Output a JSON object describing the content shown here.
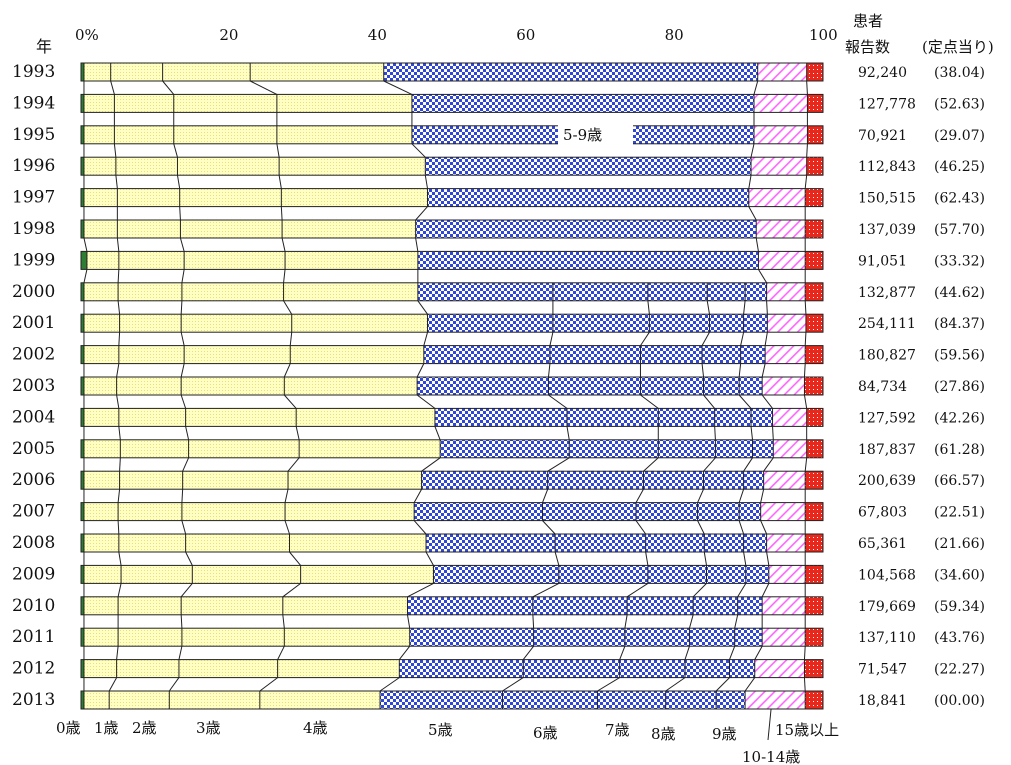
{
  "header": {
    "year_label": "年",
    "patients_label_line1": "患者",
    "patients_label_line2": "報告数",
    "per_sentinel_label": "(定点当り)"
  },
  "colors": {
    "age0": "#2e7d32",
    "age1to4": "#ffffc0",
    "age5to9": "#2f46d6",
    "age10to14": "#ff66ff",
    "age15plus": "#e8281c"
  },
  "chart_data": {
    "type": "bar",
    "stacked": true,
    "orientation": "horizontal",
    "x_ticks": [
      "0%",
      "20",
      "40",
      "60",
      "80",
      "100"
    ],
    "xlim": [
      0,
      100
    ],
    "years": [
      "1993",
      "1994",
      "1995",
      "1996",
      "1997",
      "1998",
      "1999",
      "2000",
      "2001",
      "2002",
      "2003",
      "2004",
      "2005",
      "2006",
      "2007",
      "2008",
      "2009",
      "2010",
      "2011",
      "2012",
      "2013"
    ],
    "patients": [
      "92,240",
      "127,778",
      "70,921",
      "112,843",
      "150,515",
      "137,039",
      "91,051",
      "132,877",
      "254,111",
      "180,827",
      "84,734",
      "127,592",
      "187,837",
      "200,639",
      "67,803",
      "65,361",
      "104,568",
      "179,669",
      "137,110",
      "71,547",
      "18,841"
    ],
    "per_sentinel": [
      "(38.04)",
      "(52.63)",
      "(29.07)",
      "(46.25)",
      "(62.43)",
      "(57.70)",
      "(33.32)",
      "(44.62)",
      "(84.37)",
      "(59.56)",
      "(27.86)",
      "(42.26)",
      "(61.28)",
      "(66.57)",
      "(22.51)",
      "(21.66)",
      "(34.60)",
      "(59.34)",
      "(43.76)",
      "(22.27)",
      "(00.00)"
    ],
    "annotation": "5-9歳",
    "age_labels": [
      "0歳",
      "1歳",
      "2歳",
      "3歳",
      "4歳",
      "5歳",
      "6歳",
      "7歳",
      "8歳",
      "9歳",
      "10-14歳",
      "15歳以上"
    ],
    "cumulative_boundaries_percent": [
      {
        "age0": 0.4,
        "age1_4": [
          4.0,
          11.0,
          22.8,
          40.8
        ],
        "age5_9": [],
        "end5_9": 91.2,
        "end10_14": 97.8
      },
      {
        "age0": 0.4,
        "age1_4": [
          4.5,
          12.5,
          26.4,
          44.6
        ],
        "age5_9": [],
        "end5_9": 90.7,
        "end10_14": 97.9
      },
      {
        "age0": 0.4,
        "age1_4": [
          4.5,
          12.5,
          26.4,
          44.6
        ],
        "age5_9": [],
        "end5_9": 90.7,
        "end10_14": 97.9
      },
      {
        "age0": 0.4,
        "age1_4": [
          4.7,
          13.0,
          26.7,
          46.4
        ],
        "age5_9": [],
        "end5_9": 90.3,
        "end10_14": 97.8
      },
      {
        "age0": 0.4,
        "age1_4": [
          4.9,
          13.3,
          27.0,
          46.7
        ],
        "age5_9": [],
        "end5_9": 90.0,
        "end10_14": 97.6
      },
      {
        "age0": 0.4,
        "age1_4": [
          4.9,
          13.4,
          27.1,
          45.1
        ],
        "age5_9": [],
        "end5_9": 91.0,
        "end10_14": 97.6
      },
      {
        "age0": 0.8,
        "age1_4": [
          5.1,
          13.9,
          27.5,
          45.4
        ],
        "age5_9": [],
        "end5_9": 91.3,
        "end10_14": 97.6
      },
      {
        "age0": 0.4,
        "age1_4": [
          5.0,
          13.6,
          27.3,
          45.4
        ],
        "age5_9": [
          63.6,
          76.4,
          84.4,
          89.5
        ],
        "end5_9": 92.4,
        "end10_14": 97.6
      },
      {
        "age0": 0.4,
        "age1_4": [
          5.2,
          13.5,
          28.4,
          46.7
        ],
        "age5_9": [
          63.6,
          76.6,
          84.7,
          89.3
        ],
        "end5_9": 92.5,
        "end10_14": 97.7
      },
      {
        "age0": 0.4,
        "age1_4": [
          5.1,
          13.9,
          28.2,
          46.2
        ],
        "age5_9": [
          63.2,
          75.4,
          83.7,
          88.9
        ],
        "end5_9": 92.2,
        "end10_14": 97.6
      },
      {
        "age0": 0.4,
        "age1_4": [
          4.8,
          13.5,
          27.4,
          45.3
        ],
        "age5_9": [
          63.0,
          75.4,
          83.9,
          88.7
        ],
        "end5_9": 91.8,
        "end10_14": 97.5
      },
      {
        "age0": 0.4,
        "age1_4": [
          5.1,
          14.1,
          29.0,
          47.7
        ],
        "age5_9": [
          65.5,
          77.8,
          85.4,
          90.3
        ],
        "end5_9": 93.2,
        "end10_14": 97.8
      },
      {
        "age0": 0.4,
        "age1_4": [
          5.3,
          14.5,
          29.4,
          48.4
        ],
        "age5_9": [
          65.8,
          77.8,
          85.5,
          90.5
        ],
        "end5_9": 93.3,
        "end10_14": 97.8
      },
      {
        "age0": 0.4,
        "age1_4": [
          5.2,
          13.7,
          27.9,
          45.9
        ],
        "age5_9": [
          62.9,
          75.8,
          83.9,
          89.3
        ],
        "end5_9": 92.0,
        "end10_14": 97.6
      },
      {
        "age0": 0.4,
        "age1_4": [
          5.0,
          13.6,
          27.5,
          44.9
        ],
        "age5_9": [
          62.2,
          74.8,
          83.1,
          88.7
        ],
        "end5_9": 91.6,
        "end10_14": 97.6
      },
      {
        "age0": 0.4,
        "age1_4": [
          5.1,
          14.1,
          28.1,
          46.5
        ],
        "age5_9": [
          63.9,
          76.1,
          84.0,
          89.3
        ],
        "end5_9": 92.4,
        "end10_14": 97.6
      },
      {
        "age0": 0.4,
        "age1_4": [
          5.4,
          15.0,
          29.6,
          47.5
        ],
        "age5_9": [
          64.4,
          76.4,
          84.3,
          89.6
        ],
        "end5_9": 92.7,
        "end10_14": 97.6
      },
      {
        "age0": 0.4,
        "age1_4": [
          5.0,
          13.5,
          27.2,
          44.0
        ],
        "age5_9": [
          60.9,
          73.6,
          82.5,
          88.5
        ],
        "end5_9": 91.8,
        "end10_14": 97.6
      },
      {
        "age0": 0.4,
        "age1_4": [
          5.0,
          13.6,
          27.4,
          44.3
        ],
        "age5_9": [
          61.0,
          73.3,
          82.0,
          88.1
        ],
        "end5_9": 91.8,
        "end10_14": 97.6
      },
      {
        "age0": 0.4,
        "age1_4": [
          4.8,
          13.2,
          26.5,
          42.9
        ],
        "age5_9": [
          59.6,
          72.6,
          81.4,
          87.4
        ],
        "end5_9": 90.8,
        "end10_14": 97.5
      },
      {
        "age0": 0.4,
        "age1_4": [
          3.8,
          11.9,
          24.1,
          40.3
        ],
        "age5_9": [
          56.8,
          69.6,
          78.8,
          85.6
        ],
        "end5_9": 89.5,
        "end10_14": 97.6
      }
    ]
  }
}
